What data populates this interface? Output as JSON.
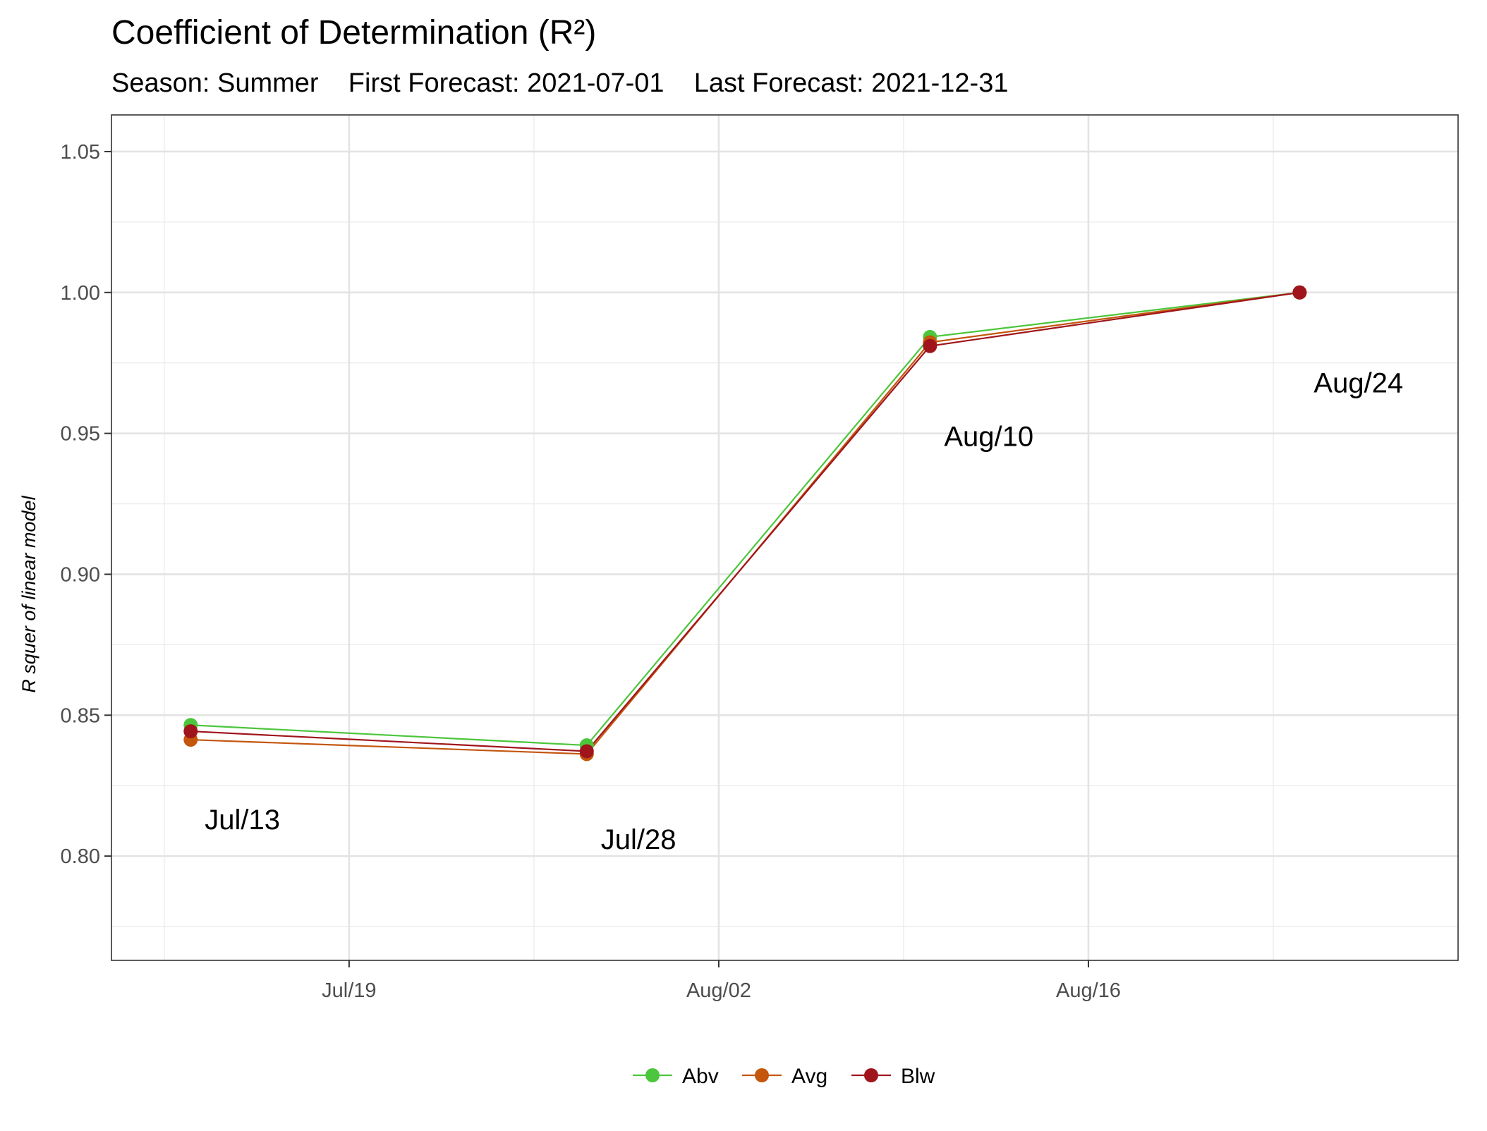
{
  "chart_data": {
    "type": "line",
    "title": "Coefficient of Determination (R²)",
    "subtitle": "Season: Summer    First Forecast: 2021-07-01    Last Forecast: 2021-12-31",
    "xlabel": "",
    "ylabel": "R squer of linear model",
    "x_type": "date",
    "xlim": [
      "2021-07-10",
      "2021-08-30"
    ],
    "ylim": [
      0.763,
      1.063
    ],
    "x_ticks": [
      {
        "date": "2021-07-19",
        "label": "Jul/19"
      },
      {
        "date": "2021-08-02",
        "label": "Aug/02"
      },
      {
        "date": "2021-08-16",
        "label": "Aug/16"
      }
    ],
    "y_ticks": [
      {
        "value": 0.8,
        "label": "0.80"
      },
      {
        "value": 0.85,
        "label": "0.85"
      },
      {
        "value": 0.9,
        "label": "0.90"
      },
      {
        "value": 0.95,
        "label": "0.95"
      },
      {
        "value": 1.0,
        "label": "1.00"
      },
      {
        "value": 1.05,
        "label": "1.05"
      }
    ],
    "x": [
      "2021-07-13",
      "2021-07-28",
      "2021-08-10",
      "2021-08-24"
    ],
    "series": [
      {
        "name": "Abv",
        "color": "#4cc63c",
        "values": [
          0.8465,
          0.8393,
          0.9842,
          1.0
        ]
      },
      {
        "name": "Avg",
        "color": "#c4560d",
        "values": [
          0.8413,
          0.8362,
          0.9823,
          1.0
        ]
      },
      {
        "name": "Blw",
        "color": "#a0151c",
        "values": [
          0.8443,
          0.8372,
          0.981,
          1.0
        ]
      }
    ],
    "annotations": [
      {
        "text": "Jul/13",
        "date": "2021-07-13",
        "value": 0.813
      },
      {
        "text": "Jul/28",
        "date": "2021-07-28",
        "value": 0.806
      },
      {
        "text": "Aug/10",
        "date": "2021-08-10",
        "value": 0.949
      },
      {
        "text": "Aug/24",
        "date": "2021-08-24",
        "value": 0.968
      }
    ],
    "grid": true,
    "legend_position": "bottom"
  }
}
